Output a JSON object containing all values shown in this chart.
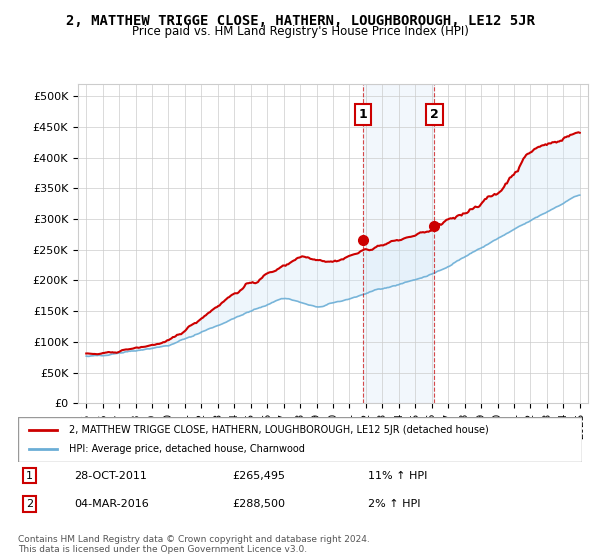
{
  "title": "2, MATTHEW TRIGGE CLOSE, HATHERN, LOUGHBOROUGH, LE12 5JR",
  "subtitle": "Price paid vs. HM Land Registry's House Price Index (HPI)",
  "ylabel_ticks": [
    "£0",
    "£50K",
    "£100K",
    "£150K",
    "£200K",
    "£250K",
    "£300K",
    "£350K",
    "£400K",
    "£450K",
    "£500K"
  ],
  "ytick_values": [
    0,
    50000,
    100000,
    150000,
    200000,
    250000,
    300000,
    350000,
    400000,
    450000,
    500000
  ],
  "ylim": [
    0,
    520000
  ],
  "hpi_color": "#a0c8e8",
  "hpi_line_color": "#6baed6",
  "price_color": "#cc0000",
  "shade_color": "#d0e8f8",
  "transaction1_date": "28-OCT-2011",
  "transaction1_price": 265495,
  "transaction1_hpi_pct": "11%",
  "transaction2_date": "04-MAR-2016",
  "transaction2_price": 288500,
  "transaction2_hpi_pct": "2%",
  "legend_property": "2, MATTHEW TRIGGE CLOSE, HATHERN, LOUGHBOROUGH, LE12 5JR (detached house)",
  "legend_hpi": "HPI: Average price, detached house, Charnwood",
  "footer": "Contains HM Land Registry data © Crown copyright and database right 2024.\nThis data is licensed under the Open Government Licence v3.0.",
  "xtick_years": [
    1995,
    1996,
    1997,
    1998,
    1999,
    2000,
    2001,
    2002,
    2003,
    2004,
    2005,
    2006,
    2007,
    2008,
    2009,
    2010,
    2011,
    2012,
    2013,
    2014,
    2015,
    2016,
    2017,
    2018,
    2019,
    2020,
    2021,
    2022,
    2023,
    2024,
    2025
  ]
}
